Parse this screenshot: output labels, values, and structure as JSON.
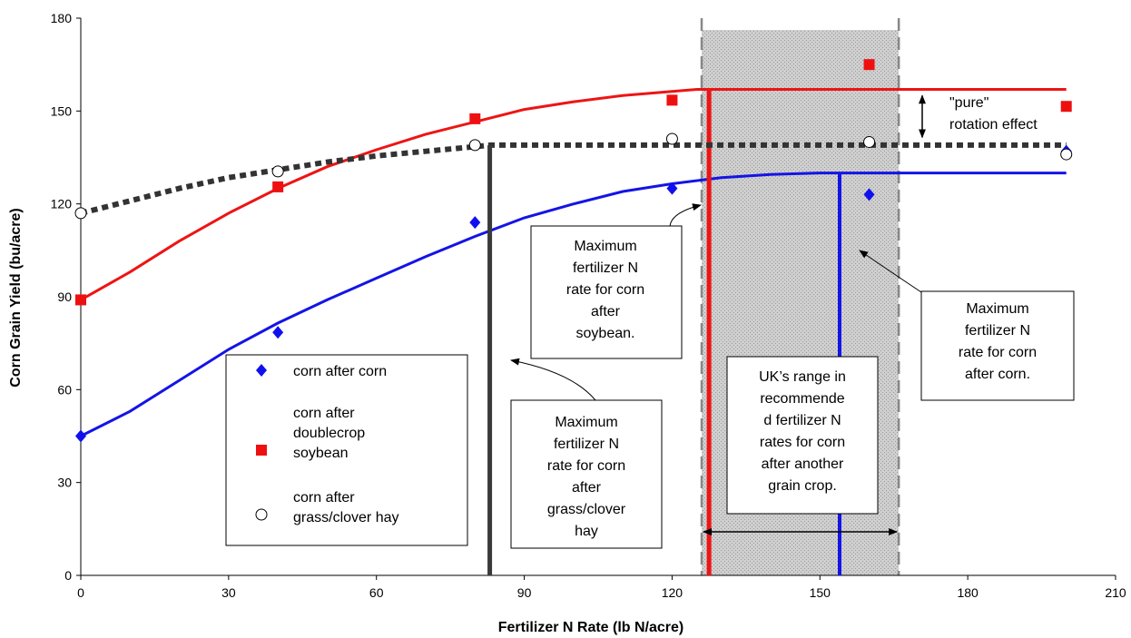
{
  "chart_data": {
    "type": "scatter",
    "xlabel": "Fertilizer N Rate (lb N/acre)",
    "ylabel": "Corn Grain Yield (bu/acre)",
    "xlim": [
      0,
      210
    ],
    "ylim": [
      0,
      180
    ],
    "x_ticks": [
      "0",
      "30",
      "60",
      "90",
      "120",
      "150",
      "180",
      "210"
    ],
    "y_ticks": [
      "0",
      "30",
      "60",
      "90",
      "120",
      "150",
      "180"
    ],
    "grid": false,
    "legend_position": "left-middle",
    "series": [
      {
        "name": "corn after corn",
        "marker": "diamond",
        "color": "#1010ee",
        "points": [
          [
            0,
            45
          ],
          [
            40,
            78.5
          ],
          [
            80,
            114
          ],
          [
            120,
            125
          ],
          [
            160,
            123
          ],
          [
            200,
            137
          ]
        ],
        "curve": [
          [
            0,
            45
          ],
          [
            10,
            53
          ],
          [
            20,
            63
          ],
          [
            30,
            73
          ],
          [
            40,
            81.5
          ],
          [
            50,
            89
          ],
          [
            60,
            96
          ],
          [
            70,
            103
          ],
          [
            80,
            109.5
          ],
          [
            90,
            115.5
          ],
          [
            100,
            120
          ],
          [
            110,
            124
          ],
          [
            120,
            126.5
          ],
          [
            130,
            128.5
          ],
          [
            140,
            129.5
          ],
          [
            150,
            130
          ],
          [
            200,
            130
          ]
        ],
        "max_rate_line": 154
      },
      {
        "name": "corn after doublecrop soybean",
        "marker": "square",
        "color": "#ee1010",
        "points": [
          [
            0,
            89
          ],
          [
            40,
            125.5
          ],
          [
            80,
            147.5
          ],
          [
            120,
            153.5
          ],
          [
            160,
            165
          ],
          [
            200,
            151.5
          ]
        ],
        "curve": [
          [
            0,
            89
          ],
          [
            10,
            98
          ],
          [
            20,
            108
          ],
          [
            30,
            117
          ],
          [
            40,
            125
          ],
          [
            50,
            132
          ],
          [
            60,
            137.5
          ],
          [
            70,
            142.5
          ],
          [
            80,
            146.5
          ],
          [
            90,
            150.5
          ],
          [
            100,
            153
          ],
          [
            110,
            155
          ],
          [
            120,
            156.3
          ],
          [
            125,
            157
          ],
          [
            200,
            157
          ]
        ],
        "max_rate_line": 127.5
      },
      {
        "name": "corn after grass/clover hay",
        "marker": "open-circle",
        "color": "#333333",
        "points": [
          [
            0,
            117
          ],
          [
            40,
            130.5
          ],
          [
            80,
            139
          ],
          [
            120,
            141
          ],
          [
            160,
            140
          ],
          [
            200,
            136
          ]
        ],
        "curve": [
          [
            0,
            117
          ],
          [
            10,
            121
          ],
          [
            20,
            125
          ],
          [
            30,
            128.5
          ],
          [
            40,
            131
          ],
          [
            50,
            133.5
          ],
          [
            60,
            135.5
          ],
          [
            70,
            137
          ],
          [
            80,
            138.5
          ],
          [
            83,
            139
          ],
          [
            200,
            139
          ]
        ],
        "max_rate_line": 83
      }
    ],
    "shaded_range": [
      126,
      166
    ],
    "annotations": [
      {
        "id": "soy",
        "text": [
          "Maximum",
          "fertilizer N",
          "rate for corn",
          "after",
          "soybean."
        ]
      },
      {
        "id": "corn",
        "text": [
          "Maximum",
          "fertilizer N",
          "rate for corn",
          "after corn."
        ]
      },
      {
        "id": "hay",
        "text": [
          "Maximum",
          "fertilizer N",
          "rate for corn",
          "after",
          "grass/clover",
          "hay"
        ]
      },
      {
        "id": "uk",
        "text": [
          "UK’s range in",
          "recommende",
          "d fertilizer N",
          "rates for corn",
          "after another",
          "grain crop."
        ]
      },
      {
        "id": "pure",
        "text": [
          "\"pure\"",
          "rotation effect"
        ]
      }
    ],
    "legend_labels": [
      [
        "corn after corn"
      ],
      [
        "corn after",
        "doublecrop",
        "soybean"
      ],
      [
        "corn after",
        "grass/clover hay"
      ]
    ]
  }
}
